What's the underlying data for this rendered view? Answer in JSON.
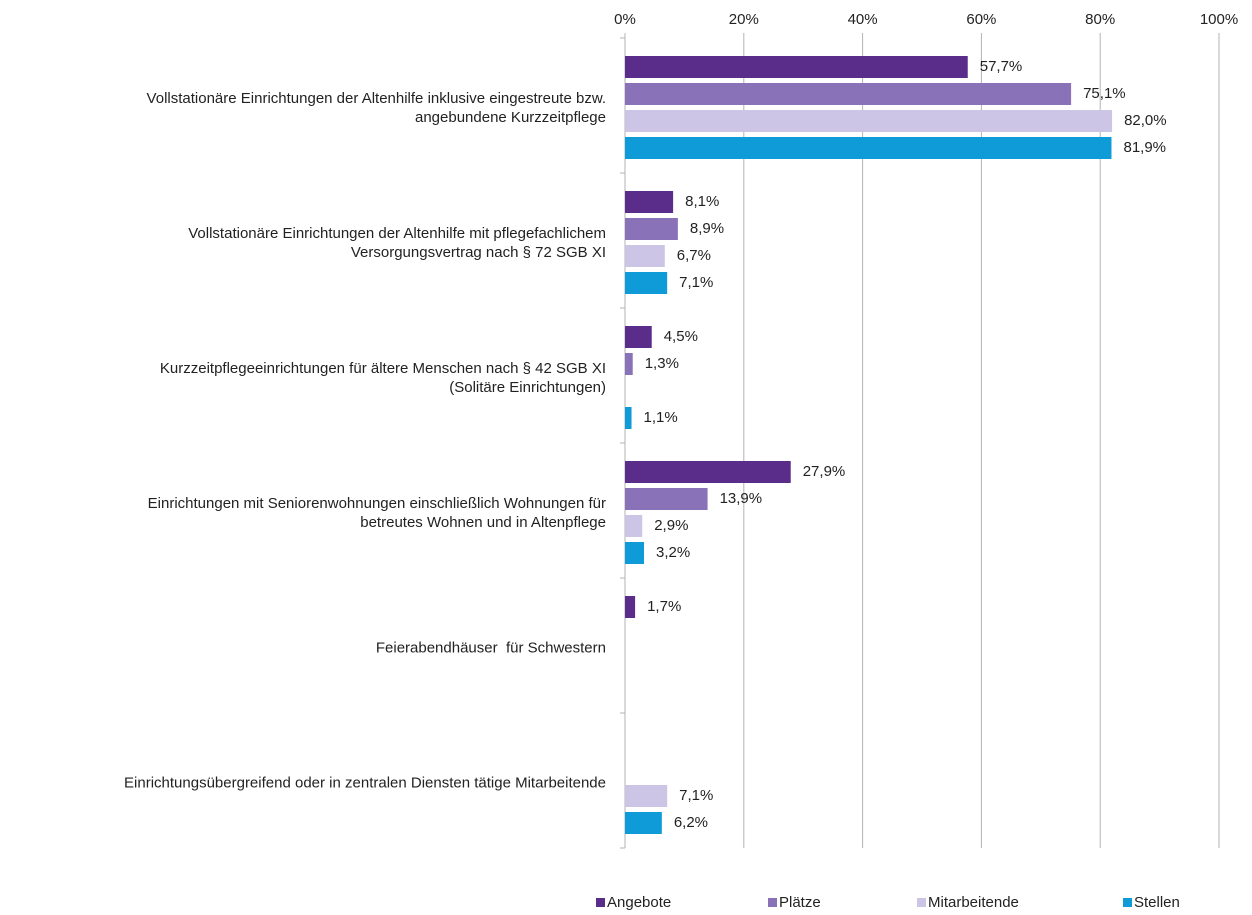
{
  "chart_data": {
    "type": "bar",
    "orientation": "horizontal",
    "categories": [
      [
        "Vollstationäre Einrichtungen der Altenhilfe inklusive eingestreute bzw.",
        "angebundene Kurzzeitpflege"
      ],
      [
        "Vollstationäre Einrichtungen der Altenhilfe mit pflegefachlichem",
        "Versorgungsvertrag nach § 72 SGB XI"
      ],
      [
        "Kurzzeitpflegeeinrichtungen für ältere Menschen nach § 42 SGB XI",
        "(Solitäre Einrichtungen)"
      ],
      [
        "Einrichtungen mit Seniorenwohnungen einschließlich Wohnungen für",
        "betreutes Wohnen und in Altenpflege"
      ],
      [
        "Feierabendhäuser  für Schwestern"
      ],
      [
        "Einrichtungsübergreifend oder in zentralen Diensten tätige Mitarbeitende"
      ]
    ],
    "series": [
      {
        "name": "Angebote",
        "color": "#5b2d8a",
        "values": [
          57.7,
          8.1,
          4.5,
          27.9,
          1.7,
          null
        ],
        "value_labels": [
          "57,7%",
          "8,1%",
          "4,5%",
          "27,9%",
          "1,7%",
          null
        ]
      },
      {
        "name": "Plätze",
        "color": "#8a72b8",
        "values": [
          75.1,
          8.9,
          1.3,
          13.9,
          null,
          null
        ],
        "value_labels": [
          "75,1%",
          "8,9%",
          "1,3%",
          "13,9%",
          null,
          null
        ]
      },
      {
        "name": "Mitarbeitende",
        "color": "#cdc5e5",
        "values": [
          82.0,
          6.7,
          null,
          2.9,
          null,
          7.1
        ],
        "value_labels": [
          "82,0%",
          "6,7%",
          null,
          "2,9%",
          null,
          "7,1%"
        ]
      },
      {
        "name": "Stellen",
        "color": "#0f9bd7",
        "values": [
          81.9,
          7.1,
          1.1,
          3.2,
          null,
          6.2
        ],
        "value_labels": [
          "81,9%",
          "7,1%",
          "1,1%",
          "3,2%",
          null,
          "6,2%"
        ]
      }
    ],
    "xlim": [
      0,
      100
    ],
    "xticks": [
      {
        "value": 0,
        "label": "0%"
      },
      {
        "value": 20,
        "label": "20%"
      },
      {
        "value": 40,
        "label": "40%"
      },
      {
        "value": 60,
        "label": "60%"
      },
      {
        "value": 80,
        "label": "80%"
      },
      {
        "value": 100,
        "label": "100%"
      }
    ],
    "grid": true,
    "legend": "bottom"
  }
}
